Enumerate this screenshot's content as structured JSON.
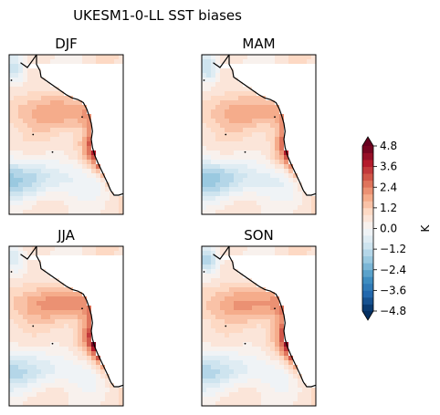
{
  "suptitle": "UKESM1-0-LL SST biases",
  "chart_data": {
    "type": "heatmap",
    "title": "UKESM1-0-LL SST biases",
    "panels": [
      {
        "title": "DJF",
        "warm_intensity": 0.85,
        "cold_intensity": 0.55,
        "north_cold": 0.45
      },
      {
        "title": "MAM",
        "warm_intensity": 0.8,
        "cold_intensity": 0.6,
        "north_cold": 0.5
      },
      {
        "title": "JJA",
        "warm_intensity": 1.0,
        "cold_intensity": 0.45,
        "north_cold": 0.35
      },
      {
        "title": "SON",
        "warm_intensity": 0.95,
        "cold_intensity": 0.45,
        "north_cold": 0.55
      }
    ],
    "colorbar": {
      "label": "K",
      "min": -4.8,
      "max": 4.8,
      "step": 0.4,
      "ticks": [
        "4.8",
        "3.6",
        "2.4",
        "1.2",
        "0.0",
        "−1.2",
        "−2.4",
        "−3.6",
        "−4.8"
      ],
      "cmap": "RdBu_r",
      "extend": "both"
    }
  }
}
